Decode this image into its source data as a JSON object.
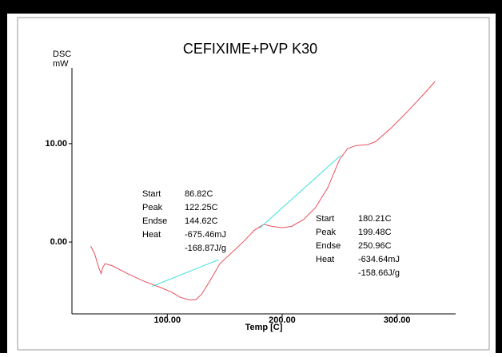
{
  "chart_data": {
    "type": "line",
    "title": "CEFIXIME+PVP K30",
    "y_label": "DSC",
    "y_unit": "mW",
    "x_label": "Temp [C]",
    "xlim": [
      17,
      351
    ],
    "ylim": [
      -7.3,
      17.7
    ],
    "xticks": [
      {
        "value": 100,
        "label": "100.00"
      },
      {
        "value": 200,
        "label": "200.00"
      },
      {
        "value": 300,
        "label": "300.00"
      }
    ],
    "yticks": [
      {
        "value": 0,
        "label": "0.00"
      },
      {
        "value": 10,
        "label": "10.00"
      }
    ],
    "series": [
      {
        "color": "#e8505a",
        "x": [
          33.3,
          36.8,
          40.3,
          42.4,
          43.8,
          45.8,
          52,
          66,
          80,
          93.8,
          104,
          111,
          119.4,
          125,
          129.9,
          136.8,
          145.8,
          156.3,
          166.7,
          175.7,
          184,
          191,
          200,
          208.3,
          218.75,
          229,
          239.6,
          250,
          257,
          264,
          274.3,
          281.25,
          295,
          309,
          323,
          333
        ],
        "values": [
          -0.41,
          -1.2,
          -2.6,
          -3.2,
          -2.6,
          -2.2,
          -2.4,
          -3.25,
          -4.0,
          -4.6,
          -5.1,
          -5.6,
          -5.9,
          -5.85,
          -5.3,
          -4.0,
          -2.2,
          -1.06,
          0.08,
          1.2,
          1.8,
          1.6,
          1.46,
          1.6,
          2.3,
          3.5,
          5.5,
          8.4,
          9.5,
          9.8,
          9.9,
          10.2,
          11.6,
          13.25,
          15.0,
          16.3
        ]
      },
      {
        "color": "#40dede",
        "x": [
          86.82,
          144.62
        ],
        "values": [
          -4.5,
          -1.8
        ]
      },
      {
        "color": "#40dede",
        "x": [
          180.21,
          250.96
        ],
        "values": [
          1.4,
          8.8
        ]
      }
    ],
    "annotations": [
      {
        "items": [
          {
            "label": "Start",
            "lines": [
              "86.82C"
            ]
          },
          {
            "label": "Peak",
            "lines": [
              "122.25C"
            ]
          },
          {
            "label": "Endse",
            "lines": [
              "144.62C"
            ]
          },
          {
            "label": "Heat",
            "lines": [
              "-675.46mJ",
              "-168.87J/g"
            ]
          }
        ]
      },
      {
        "items": [
          {
            "label": "Start",
            "lines": [
              "180.21C"
            ]
          },
          {
            "label": "Peak",
            "lines": [
              "199.48C"
            ]
          },
          {
            "label": "Endse",
            "lines": [
              "250.96C"
            ]
          },
          {
            "label": "Heat",
            "lines": [
              "-634.64mJ",
              "-158.66J/g"
            ]
          }
        ]
      }
    ]
  }
}
